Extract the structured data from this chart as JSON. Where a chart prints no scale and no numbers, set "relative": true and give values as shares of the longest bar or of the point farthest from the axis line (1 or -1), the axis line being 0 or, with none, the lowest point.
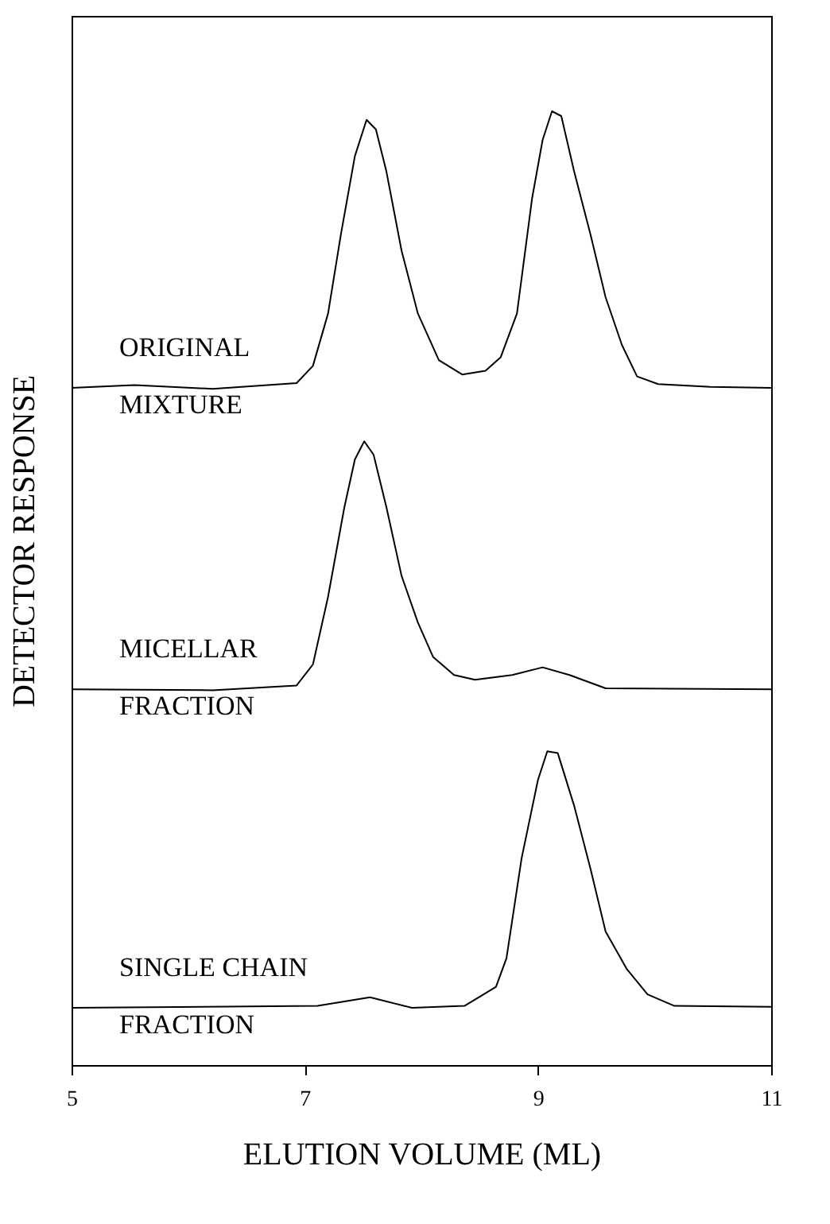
{
  "chart_data": {
    "type": "line",
    "relative": true,
    "xlabel": "ELUTION VOLUME (ML)",
    "ylabel": "DETECTOR RESPONSE",
    "xlim": [
      5,
      11
    ],
    "xticks": [
      5,
      7,
      9,
      11
    ],
    "marker": "none",
    "line_style": "solid",
    "series": [
      {
        "name": "ORIGINAL MIXTURE",
        "color": "#000000",
        "x": [
          5.0,
          5.54,
          6.21,
          6.93,
          7.07,
          7.2,
          7.31,
          7.43,
          7.53,
          7.61,
          7.7,
          7.83,
          7.97,
          8.15,
          8.35,
          8.55,
          8.68,
          8.82,
          8.95,
          9.04,
          9.12,
          9.2,
          9.31,
          9.45,
          9.58,
          9.72,
          9.85,
          10.03,
          10.48,
          11.0
        ],
        "values": [
          0.71,
          0.713,
          0.709,
          0.715,
          0.733,
          0.788,
          0.871,
          0.953,
          0.991,
          0.981,
          0.937,
          0.854,
          0.788,
          0.739,
          0.724,
          0.728,
          0.742,
          0.788,
          0.909,
          0.97,
          1.0,
          0.995,
          0.937,
          0.871,
          0.805,
          0.755,
          0.722,
          0.714,
          0.711,
          0.71
        ]
      },
      {
        "name": "MICELLAR FRACTION",
        "color": "#000000",
        "x": [
          5.0,
          6.21,
          6.93,
          7.07,
          7.2,
          7.34,
          7.43,
          7.51,
          7.59,
          7.7,
          7.83,
          7.97,
          8.1,
          8.28,
          8.46,
          8.78,
          9.04,
          9.27,
          9.58,
          11.0
        ],
        "values": [
          0.394,
          0.393,
          0.398,
          0.42,
          0.491,
          0.585,
          0.635,
          0.654,
          0.64,
          0.585,
          0.513,
          0.464,
          0.428,
          0.409,
          0.404,
          0.409,
          0.417,
          0.409,
          0.395,
          0.394
        ]
      },
      {
        "name": "SINGLE CHAIN FRACTION",
        "color": "#000000",
        "x": [
          5.0,
          7.11,
          7.56,
          7.92,
          8.37,
          8.64,
          8.73,
          8.86,
          9.0,
          9.08,
          9.17,
          9.31,
          9.45,
          9.58,
          9.76,
          9.94,
          10.17,
          11.0
        ],
        "values": [
          0.06,
          0.062,
          0.071,
          0.06,
          0.062,
          0.082,
          0.112,
          0.217,
          0.299,
          0.329,
          0.327,
          0.272,
          0.206,
          0.14,
          0.101,
          0.074,
          0.062,
          0.061
        ]
      }
    ]
  }
}
